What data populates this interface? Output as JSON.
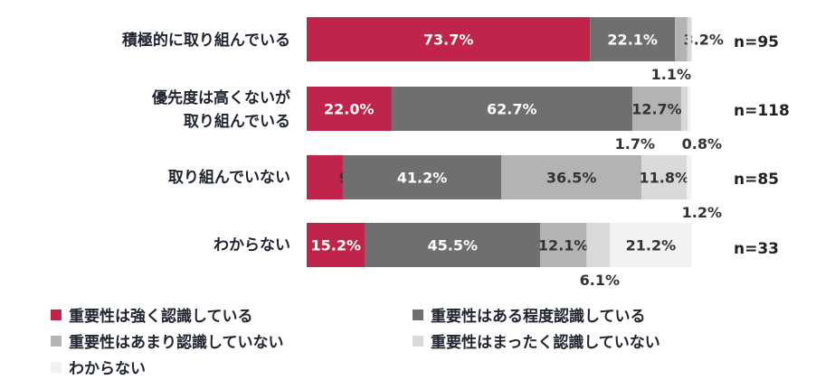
{
  "chart_data": {
    "type": "bar",
    "orientation": "horizontal",
    "stacked": true,
    "categories": [
      "積極的に取り組んでいる",
      "優先度は高くないが取り組んでいる",
      "取り組んでいない",
      "わからない"
    ],
    "category_lines": [
      [
        "積極的に取り組んでいる"
      ],
      [
        "優先度は高くないが",
        "取り組んでいる"
      ],
      [
        "取り組んでいない"
      ],
      [
        "わからない"
      ]
    ],
    "sample_sizes": [
      "n=95",
      "n=118",
      "n=85",
      "n=33"
    ],
    "series": [
      {
        "name": "重要性は強く認識している",
        "color": "#c0244a",
        "values": [
          73.7,
          22.0,
          9.4,
          15.2
        ]
      },
      {
        "name": "重要性はある程度認識している",
        "color": "#6f6f6f",
        "values": [
          22.1,
          62.7,
          41.2,
          45.5
        ]
      },
      {
        "name": "重要性はあまり認識していない",
        "color": "#b3b3b3",
        "values": [
          3.2,
          12.7,
          36.5,
          12.1
        ]
      },
      {
        "name": "重要性はまったく認識していない",
        "color": "#d9d9d9",
        "values": [
          1.1,
          1.7,
          11.8,
          6.1
        ]
      },
      {
        "name": "わからない",
        "color": "#f2f2f2",
        "values": [
          0.0,
          0.8,
          1.2,
          21.2
        ]
      }
    ],
    "xlim": [
      0,
      100
    ],
    "unit": "%",
    "grid": false,
    "legend": "bottom"
  }
}
